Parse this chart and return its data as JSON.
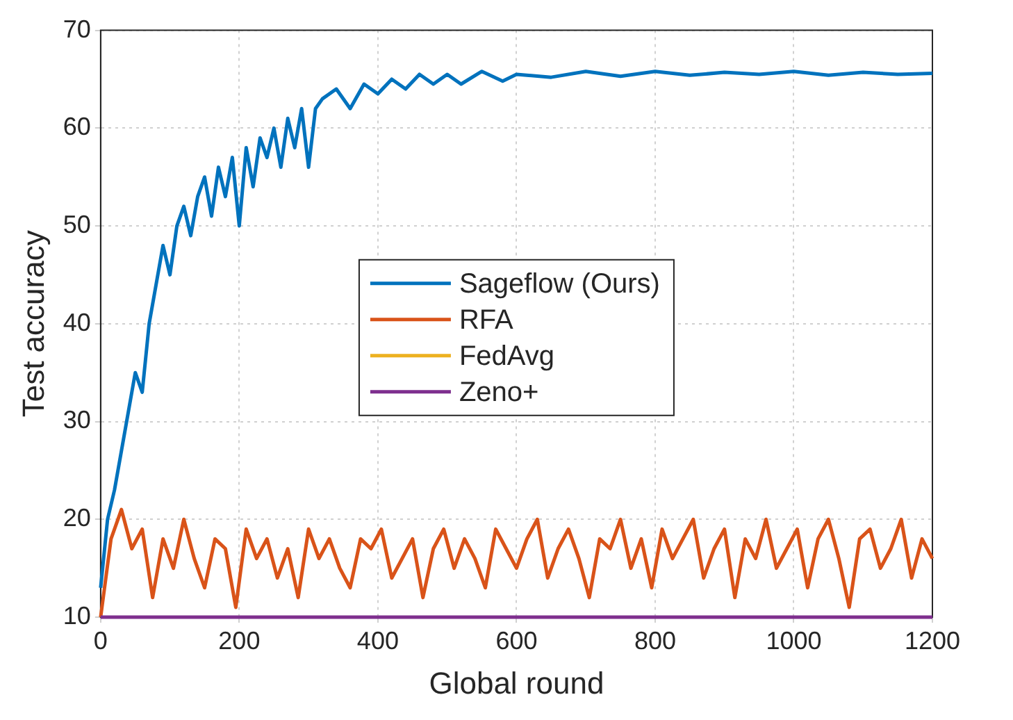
{
  "chart_data": {
    "type": "line",
    "xlabel": "Global round",
    "ylabel": "Test accuracy",
    "xlim": [
      0,
      1200
    ],
    "xticks": [
      0,
      200,
      400,
      600,
      800,
      1000,
      1200
    ],
    "ylim": [
      10,
      70
    ],
    "yticks": [
      10,
      20,
      30,
      40,
      50,
      60,
      70
    ],
    "grid": true,
    "legend": "center",
    "marker": "none",
    "line_style": "solid",
    "series": [
      {
        "name": "Sageflow (Ours)",
        "color": "#0072bd",
        "x": [
          0,
          10,
          20,
          30,
          40,
          50,
          60,
          70,
          80,
          90,
          100,
          110,
          120,
          130,
          140,
          150,
          160,
          170,
          180,
          190,
          200,
          210,
          220,
          230,
          240,
          250,
          260,
          270,
          280,
          290,
          300,
          310,
          320,
          340,
          360,
          380,
          400,
          420,
          440,
          460,
          480,
          500,
          520,
          550,
          580,
          600,
          650,
          700,
          750,
          800,
          850,
          900,
          950,
          1000,
          1050,
          1100,
          1150,
          1200
        ],
        "values": [
          13,
          20,
          23,
          27,
          31,
          35,
          33,
          40,
          44,
          48,
          45,
          50,
          52,
          49,
          53,
          55,
          51,
          56,
          53,
          57,
          50,
          58,
          54,
          59,
          57,
          60,
          56,
          61,
          58,
          62,
          56,
          62,
          63,
          64,
          62,
          64.5,
          63.5,
          65,
          64,
          65.5,
          64.5,
          65.5,
          64.5,
          65.8,
          64.8,
          65.5,
          65.2,
          65.8,
          65.3,
          65.8,
          65.4,
          65.7,
          65.5,
          65.8,
          65.4,
          65.7,
          65.5,
          65.6
        ]
      },
      {
        "name": "RFA",
        "color": "#d95319",
        "x": [
          0,
          15,
          30,
          45,
          60,
          75,
          90,
          105,
          120,
          135,
          150,
          165,
          180,
          195,
          210,
          225,
          240,
          255,
          270,
          285,
          300,
          315,
          330,
          345,
          360,
          375,
          390,
          405,
          420,
          435,
          450,
          465,
          480,
          495,
          510,
          525,
          540,
          555,
          570,
          585,
          600,
          615,
          630,
          645,
          660,
          675,
          690,
          705,
          720,
          735,
          750,
          765,
          780,
          795,
          810,
          825,
          840,
          855,
          870,
          885,
          900,
          915,
          930,
          945,
          960,
          975,
          990,
          1005,
          1020,
          1035,
          1050,
          1065,
          1080,
          1095,
          1110,
          1125,
          1140,
          1155,
          1170,
          1185,
          1200
        ],
        "values": [
          10,
          18,
          21,
          17,
          19,
          12,
          18,
          15,
          20,
          16,
          13,
          18,
          17,
          11,
          19,
          16,
          18,
          14,
          17,
          12,
          19,
          16,
          18,
          15,
          13,
          18,
          17,
          19,
          14,
          16,
          18,
          12,
          17,
          19,
          15,
          18,
          16,
          13,
          19,
          17,
          15,
          18,
          20,
          14,
          17,
          19,
          16,
          12,
          18,
          17,
          20,
          15,
          18,
          13,
          19,
          16,
          18,
          20,
          14,
          17,
          19,
          12,
          18,
          16,
          20,
          15,
          17,
          19,
          13,
          18,
          20,
          16,
          11,
          18,
          19,
          15,
          17,
          20,
          14,
          18,
          16
        ]
      },
      {
        "name": "FedAvg",
        "color": "#edb120"
      },
      {
        "name": "Zeno+",
        "color": "#7e2f8e",
        "x": [
          0,
          1200
        ],
        "values": [
          10,
          10
        ]
      }
    ]
  }
}
